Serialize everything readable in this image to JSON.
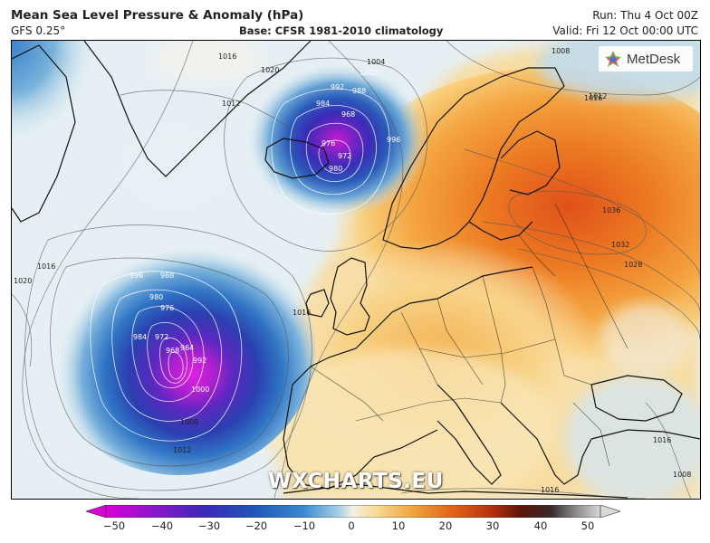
{
  "header": {
    "title": "Mean Sea Level Pressure & Anomaly (hPa)",
    "model": "GFS 0.25°",
    "base": "Base: CFSR 1981-2010 climatology",
    "run": "Run: Thu 4 Oct 00Z",
    "valid": "Valid: Fri 12 Oct 00:00 UTC"
  },
  "logo": {
    "text": "MetDesk",
    "icon": "metdesk-logo-icon"
  },
  "watermark": "WXCHARTS.EU",
  "isobar_labels": [
    "1016",
    "1020",
    "1012",
    "1004",
    "1000",
    "992",
    "988",
    "984",
    "968",
    "976",
    "972",
    "980",
    "996",
    "1016",
    "1012",
    "1016",
    "1036",
    "1032",
    "1028",
    "1016",
    "996",
    "988",
    "980",
    "984",
    "976",
    "972",
    "968",
    "964",
    "992",
    "1000",
    "1008",
    "1012",
    "1016",
    "1020",
    "1008",
    "1016",
    "1008"
  ],
  "colorbar": {
    "ticks": [
      "−50",
      "−40",
      "−30",
      "−20",
      "−10",
      "0",
      "10",
      "20",
      "30",
      "40",
      "50"
    ],
    "colors": [
      "#d800d8",
      "#8a18c8",
      "#3a2ab8",
      "#1f56b8",
      "#3a8ad0",
      "#a6cfe6",
      "#f4f0e4",
      "#f7d890",
      "#f0a440",
      "#e26418",
      "#b83010",
      "#5a1408",
      "#3a2a2a",
      "#8a8a8a",
      "#c8c8c8"
    ]
  }
}
